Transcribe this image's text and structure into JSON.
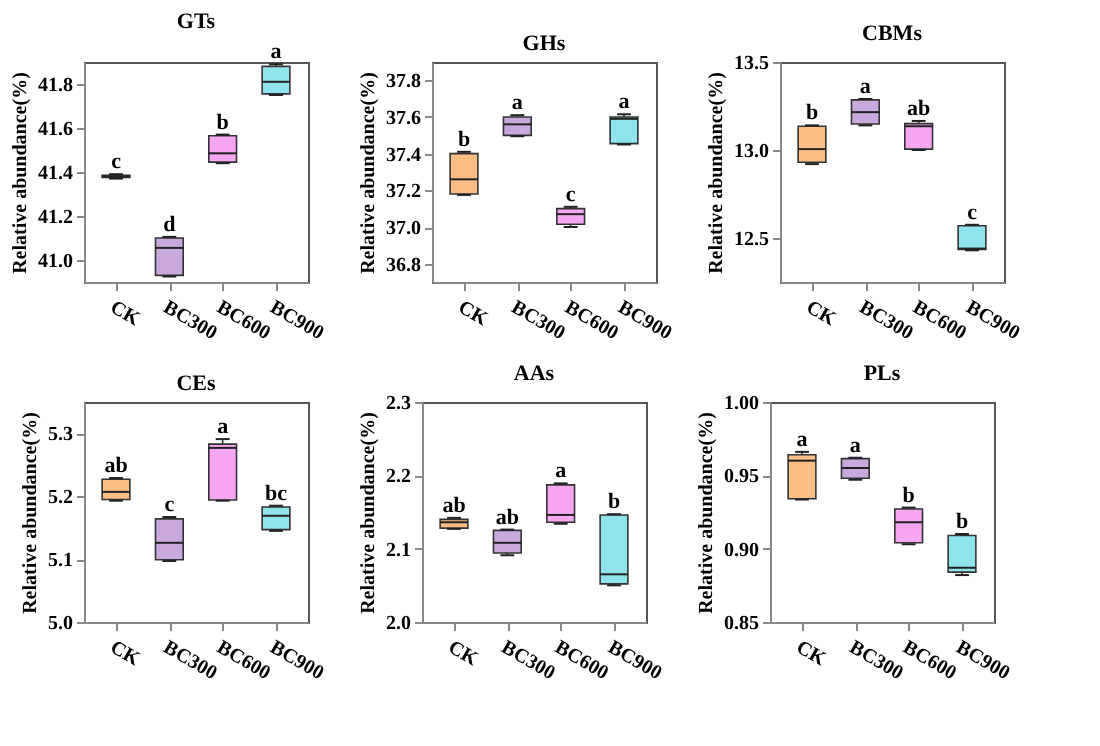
{
  "chart_data": [
    {
      "type": "box",
      "title": "GTs",
      "ylabel": "Relative abundance(%)",
      "categories": [
        "CK",
        "BC300",
        "BC600",
        "BC900"
      ],
      "colors": [
        "#fbbf86",
        "#c9a9dd",
        "#f7a6f2",
        "#8fe3ea"
      ],
      "ylim": [
        40.9,
        41.9
      ],
      "yticks": [
        {
          "value": 41,
          "label": "41.0"
        },
        41.2,
        41.4,
        41.6,
        41.8
      ],
      "boxes": [
        {
          "low": 41.37,
          "q1": 41.375,
          "median": 41.38,
          "q3": 41.385,
          "high": 41.39
        },
        {
          "low": 40.925,
          "q1": 40.93,
          "median": 41.055,
          "q3": 41.1,
          "high": 41.105
        },
        {
          "low": 41.44,
          "q1": 41.445,
          "median": 41.485,
          "q3": 41.565,
          "high": 41.57
        },
        {
          "low": 41.75,
          "q1": 41.755,
          "median": 41.81,
          "q3": 41.88,
          "high": 41.89
        }
      ],
      "annotations": [
        "c",
        "d",
        "b",
        "a"
      ]
    },
    {
      "type": "box",
      "title": "GHs",
      "ylabel": "Relative abundance(%)",
      "categories": [
        "CK",
        "BC300",
        "BC600",
        "BC900"
      ],
      "colors": [
        "#fbbf86",
        "#c9a9dd",
        "#f7a6f2",
        "#8fe3ea"
      ],
      "ylim": [
        36.7,
        37.9
      ],
      "yticks": [
        36.8,
        {
          "value": 37,
          "label": "37.0"
        },
        37.2,
        37.4,
        37.6,
        37.8
      ],
      "boxes": [
        {
          "low": 37.175,
          "q1": 37.18,
          "median": 37.26,
          "q3": 37.4,
          "high": 37.41
        },
        {
          "low": 37.495,
          "q1": 37.5,
          "median": 37.56,
          "q3": 37.6,
          "high": 37.61
        },
        {
          "low": 37.0,
          "q1": 37.015,
          "median": 37.07,
          "q3": 37.1,
          "high": 37.11
        },
        {
          "low": 37.45,
          "q1": 37.455,
          "median": 37.59,
          "q3": 37.6,
          "high": 37.615
        }
      ],
      "annotations": [
        "b",
        "a",
        "c",
        "a"
      ]
    },
    {
      "type": "box",
      "title": "CBMs",
      "ylabel": "Relative abundance(%)",
      "categories": [
        "CK",
        "BC300",
        "BC600",
        "BC900"
      ],
      "colors": [
        "#fbbf86",
        "#c9a9dd",
        "#f7a6f2",
        "#8fe3ea"
      ],
      "ylim": [
        12.25,
        13.5
      ],
      "yticks": [
        12.5,
        {
          "value": 13,
          "label": "13.0"
        },
        13.5
      ],
      "boxes": [
        {
          "low": 12.92,
          "q1": 12.93,
          "median": 13.005,
          "q3": 13.135,
          "high": 13.14
        },
        {
          "low": 13.14,
          "q1": 13.148,
          "median": 13.215,
          "q3": 13.285,
          "high": 13.29
        },
        {
          "low": 13.0,
          "q1": 13.005,
          "median": 13.135,
          "q3": 13.15,
          "high": 13.165
        },
        {
          "low": 12.43,
          "q1": 12.435,
          "median": 12.44,
          "q3": 12.57,
          "high": 12.575
        }
      ],
      "annotations": [
        "b",
        "a",
        "ab",
        "c"
      ]
    },
    {
      "type": "box",
      "title": "CEs",
      "ylabel": "Relative abundance(%)",
      "categories": [
        "CK",
        "BC300",
        "BC600",
        "BC900"
      ],
      "colors": [
        "#fbbf86",
        "#c9a9dd",
        "#f7a6f2",
        "#8fe3ea"
      ],
      "ylim": [
        5.0,
        5.35
      ],
      "yticks": [
        {
          "value": 5,
          "label": "5.0"
        },
        5.1,
        5.2,
        5.3
      ],
      "boxes": [
        {
          "low": 5.193,
          "q1": 5.195,
          "median": 5.207,
          "q3": 5.227,
          "high": 5.229
        },
        {
          "low": 5.097,
          "q1": 5.099,
          "median": 5.126,
          "q3": 5.164,
          "high": 5.167
        },
        {
          "low": 5.193,
          "q1": 5.194,
          "median": 5.277,
          "q3": 5.283,
          "high": 5.291
        },
        {
          "low": 5.145,
          "q1": 5.147,
          "median": 5.169,
          "q3": 5.183,
          "high": 5.185
        }
      ],
      "annotations": [
        "ab",
        "c",
        "a",
        "bc"
      ]
    },
    {
      "type": "box",
      "title": "AAs",
      "ylabel": "Relative abundance(%)",
      "categories": [
        "CK",
        "BC300",
        "BC600",
        "BC900"
      ],
      "colors": [
        "#fbbf86",
        "#c9a9dd",
        "#f7a6f2",
        "#8fe3ea"
      ],
      "ylim": [
        2.0,
        2.3
      ],
      "yticks": [
        {
          "value": 2,
          "label": "2.0"
        },
        2.1,
        2.2,
        2.3
      ],
      "boxes": [
        {
          "low": 2.127,
          "q1": 2.128,
          "median": 2.136,
          "q3": 2.14,
          "high": 2.142
        },
        {
          "low": 2.091,
          "q1": 2.094,
          "median": 2.108,
          "q3": 2.125,
          "high": 2.126
        },
        {
          "low": 2.134,
          "q1": 2.136,
          "median": 2.146,
          "q3": 2.187,
          "high": 2.189
        },
        {
          "low": 2.05,
          "q1": 2.052,
          "median": 2.065,
          "q3": 2.146,
          "high": 2.147
        }
      ],
      "annotations": [
        "ab",
        "ab",
        "a",
        "b"
      ]
    },
    {
      "type": "box",
      "title": "PLs",
      "ylabel": "Relative abundance(%)",
      "categories": [
        "CK",
        "BC300",
        "BC600",
        "BC900"
      ],
      "colors": [
        "#fbbf86",
        "#c9a9dd",
        "#f7a6f2",
        "#8fe3ea"
      ],
      "ylim": [
        0.85,
        1.0
      ],
      "yticks": [
        0.85,
        {
          "value": 0.9,
          "label": "0.90"
        },
        0.95,
        {
          "value": 1,
          "label": "1.00"
        }
      ],
      "boxes": [
        {
          "low": 0.9335,
          "q1": 0.934,
          "median": 0.96,
          "q3": 0.964,
          "high": 0.966
        },
        {
          "low": 0.947,
          "q1": 0.948,
          "median": 0.955,
          "q3": 0.9614,
          "high": 0.962
        },
        {
          "low": 0.903,
          "q1": 0.904,
          "median": 0.918,
          "q3": 0.927,
          "high": 0.928
        },
        {
          "low": 0.882,
          "q1": 0.884,
          "median": 0.887,
          "q3": 0.909,
          "high": 0.91
        }
      ],
      "annotations": [
        "a",
        "a",
        "b",
        "b"
      ]
    }
  ]
}
